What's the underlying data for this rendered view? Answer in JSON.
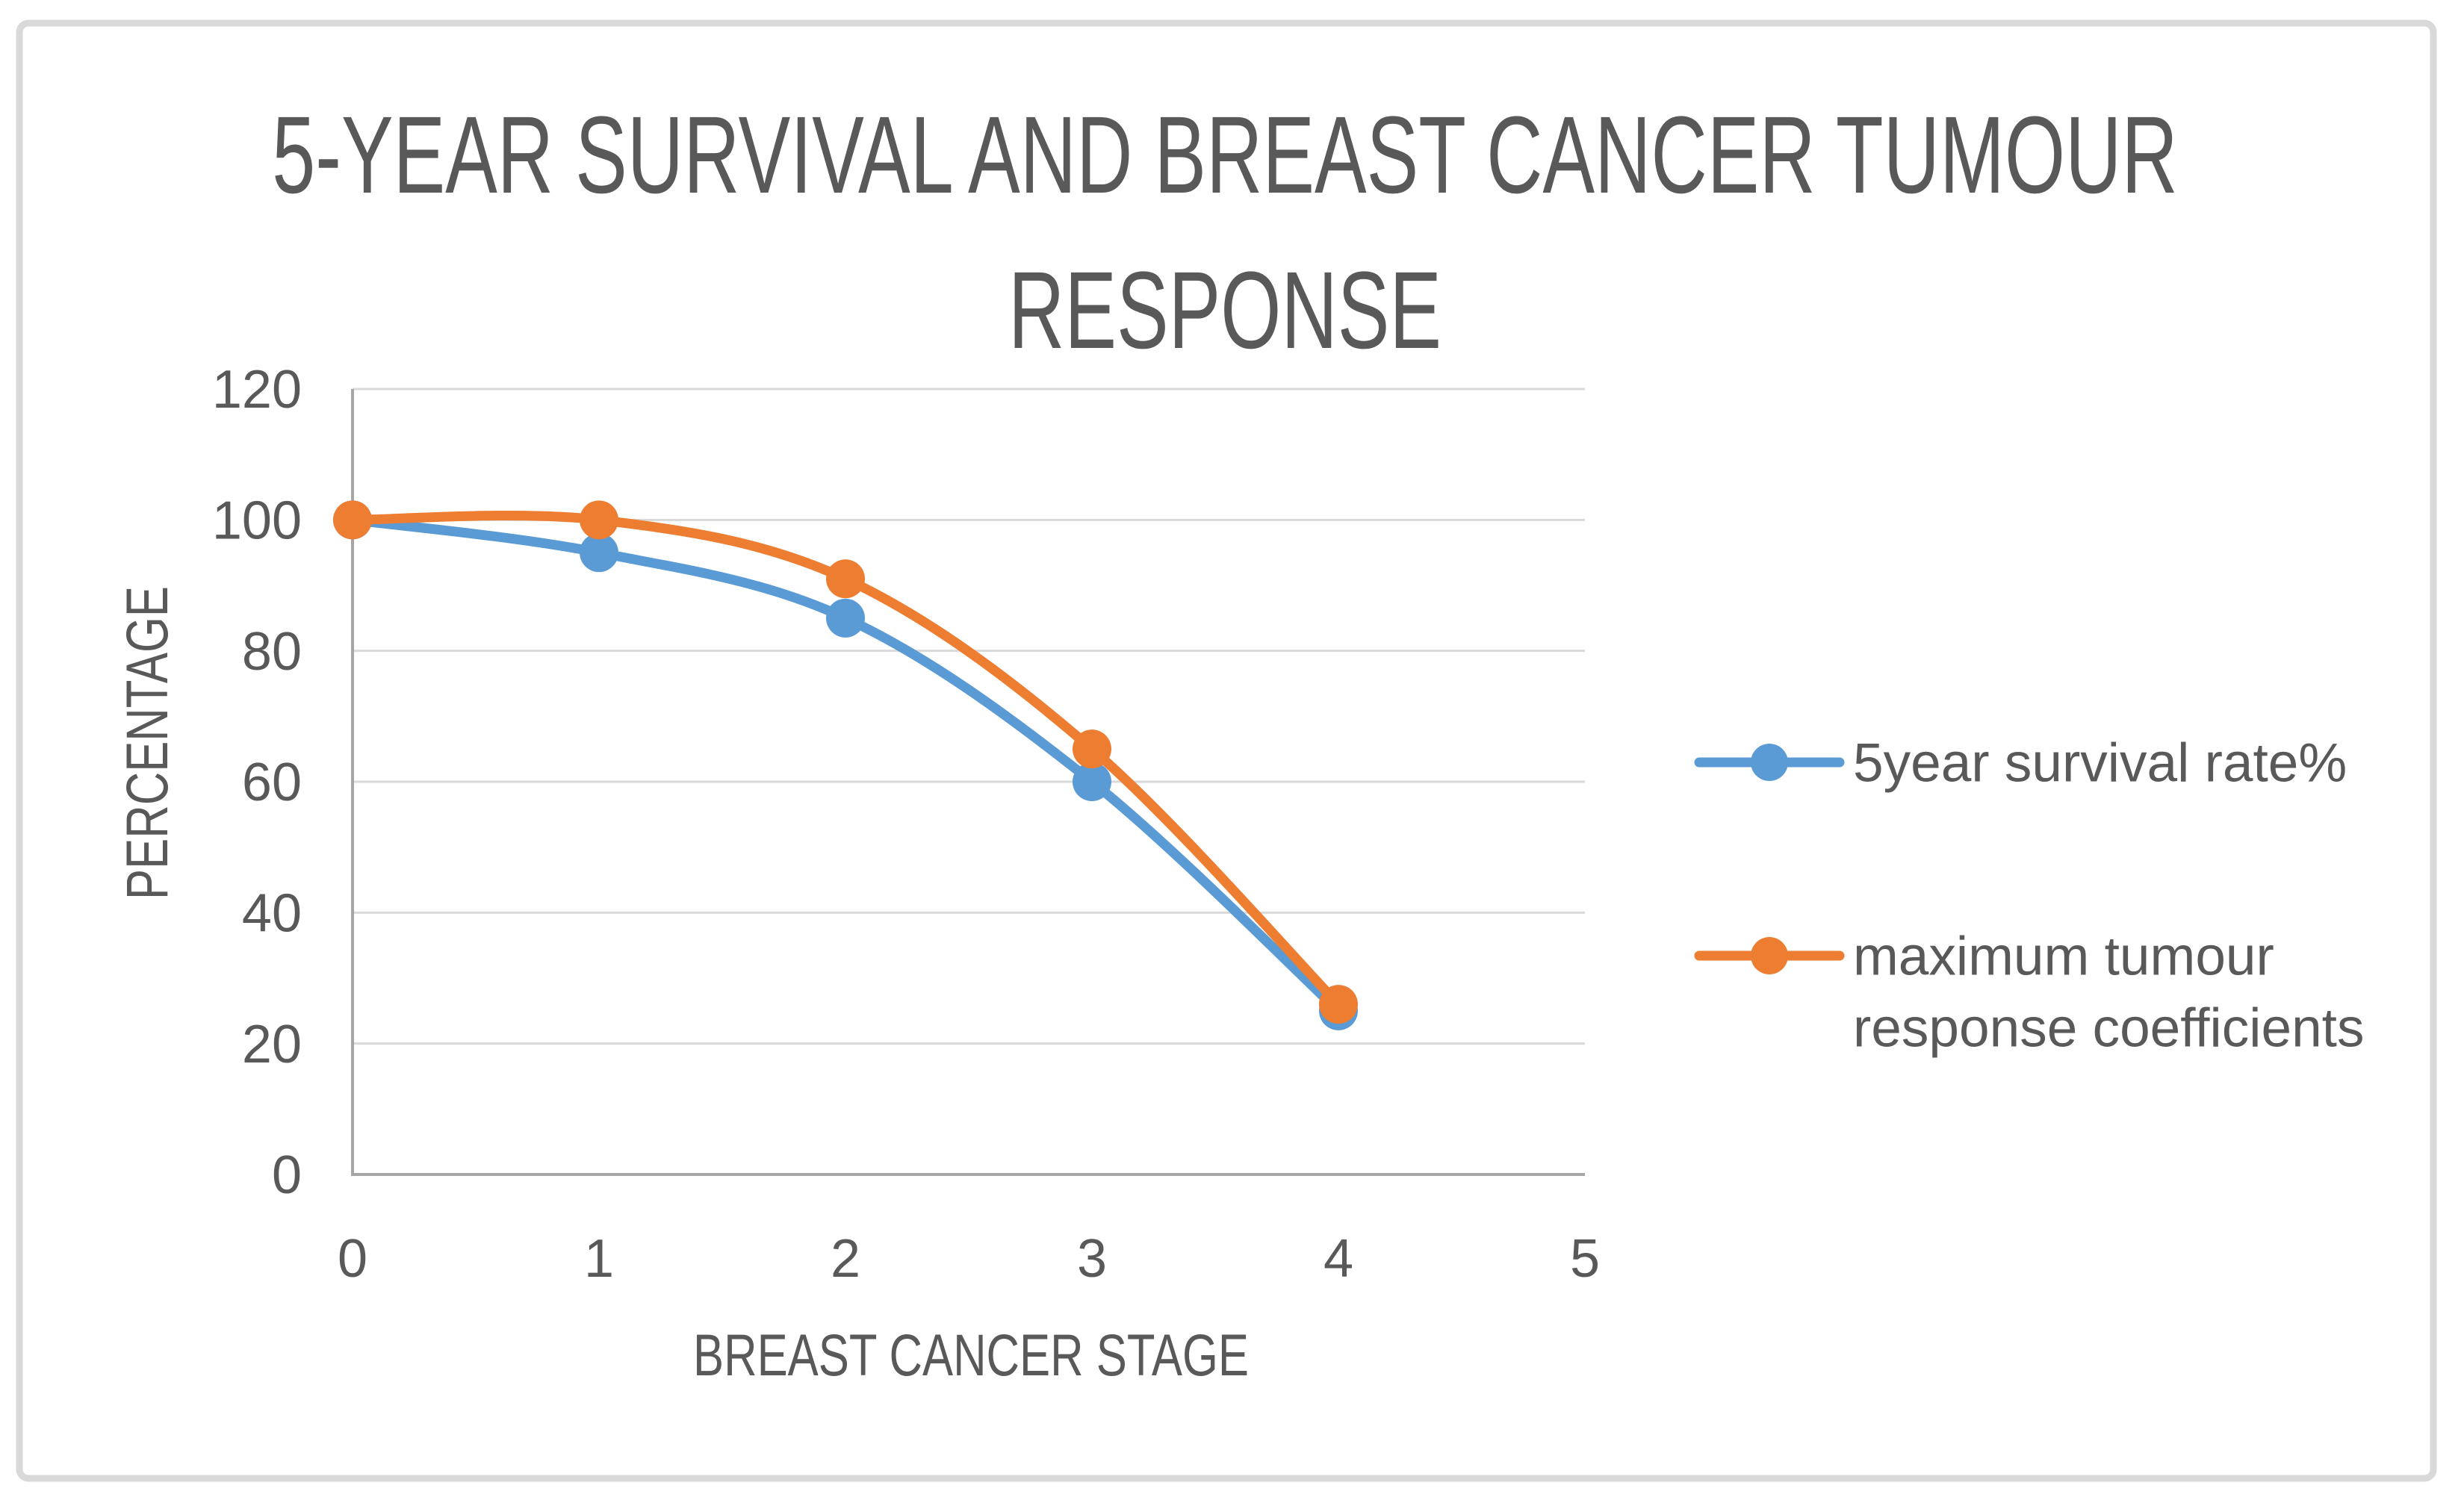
{
  "chart": {
    "title": "5-YEAR SURVIVAL AND BREAST CANCER TUMOUR RESPONSE",
    "title_lines": [
      "5-YEAR SURVIVAL AND BREAST CANCER TUMOUR",
      "RESPONSE"
    ]
  },
  "chart_data": {
    "type": "line",
    "title": "5-YEAR SURVIVAL AND BREAST CANCER TUMOUR RESPONSE",
    "xlabel": "BREAST CANCER STAGE",
    "ylabel": "PERCENTAGE",
    "x": [
      0,
      1,
      2,
      3,
      4
    ],
    "xlim": [
      0,
      5
    ],
    "ylim": [
      0,
      120
    ],
    "xticks": [
      "0",
      "1",
      "2",
      "3",
      "4",
      "5"
    ],
    "yticks": [
      "0",
      "20",
      "40",
      "60",
      "80",
      "100",
      "120"
    ],
    "grid": "horizontal",
    "smooth": true,
    "markers": "circle",
    "legend_position": "right",
    "series": [
      {
        "name": "5year survival rate%",
        "legend_lines": [
          "5year survival rate%"
        ],
        "color": "#5B9BD5",
        "values": [
          100,
          95,
          85,
          60,
          25
        ]
      },
      {
        "name": "maximum tumour response coefficients",
        "legend_lines": [
          "maximum tumour",
          "response coefficients"
        ],
        "color": "#ED7D31",
        "values": [
          100,
          100,
          91,
          65,
          26
        ]
      }
    ]
  },
  "colors": {
    "background": "#FFFFFF",
    "frame_border": "#D9D9D9",
    "gridline": "#D9D9D9",
    "axis_line": "#A6A6A6",
    "text": "#595959",
    "series_blue": "#5B9BD5",
    "series_orange": "#ED7D31"
  }
}
